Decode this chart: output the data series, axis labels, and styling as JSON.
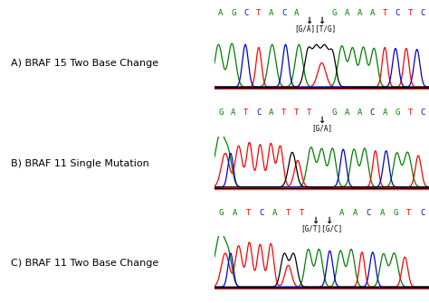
{
  "panel_A_label": "A) BRAF 15 Two Base Change",
  "panel_B_label": "B) BRAF 11 Single Mutation",
  "panel_C_label": "C) BRAF 11 Two Base Change",
  "seq_A": [
    "A",
    "G",
    "C",
    "T",
    "A",
    "C",
    "A",
    "↓",
    "↓",
    "G",
    "A",
    "A",
    "A",
    "T",
    "C",
    "T",
    "C"
  ],
  "seq_A_colors": [
    "#008000",
    "#008000",
    "#0000cc",
    "#ff0000",
    "#008000",
    "#0000cc",
    "#008000",
    "#000000",
    "#000000",
    "#008000",
    "#008000",
    "#008000",
    "#008000",
    "#ff0000",
    "#0000cc",
    "#ff0000",
    "#0000cc"
  ],
  "seq_A_annotation": "[G/A][T/G]",
  "seq_B": [
    "G",
    "A",
    "T",
    "C",
    "A",
    "T",
    "T",
    "T",
    "↓",
    "G",
    "A",
    "A",
    "C",
    "A",
    "G",
    "T",
    "C"
  ],
  "seq_B_colors": [
    "#008000",
    "#008000",
    "#ff0000",
    "#0000cc",
    "#008000",
    "#ff0000",
    "#ff0000",
    "#ff0000",
    "#000000",
    "#008000",
    "#008000",
    "#008000",
    "#0000cc",
    "#008000",
    "#008000",
    "#ff0000",
    "#0000cc"
  ],
  "seq_B_annotation": "[G/A]",
  "seq_C": [
    "G",
    "A",
    "T",
    "C",
    "A",
    "T",
    "T",
    "↓",
    "↓",
    "A",
    "A",
    "C",
    "A",
    "G",
    "T",
    "C"
  ],
  "seq_C_colors": [
    "#008000",
    "#008000",
    "#ff0000",
    "#0000cc",
    "#008000",
    "#ff0000",
    "#ff0000",
    "#000000",
    "#000000",
    "#008000",
    "#008000",
    "#0000cc",
    "#008000",
    "#008000",
    "#ff0000",
    "#0000cc"
  ],
  "seq_C_annotation": "[G/T][G/C]",
  "bg_color": "#ffffff"
}
